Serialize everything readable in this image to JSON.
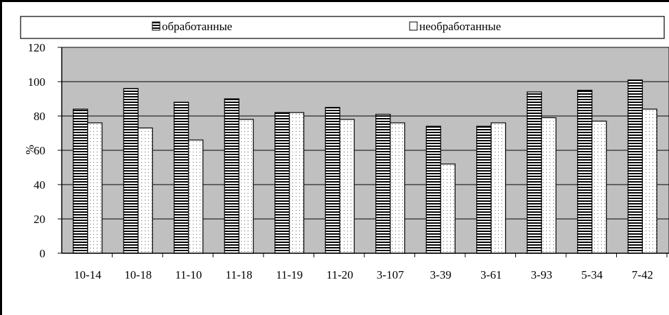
{
  "chart_data": {
    "type": "bar",
    "categories": [
      "10-14",
      "10-18",
      "11-10",
      "11-18",
      "11-19",
      "11-20",
      "3-107",
      "3-39",
      "3-61",
      "3-93",
      "5-34",
      "7-42"
    ],
    "series": [
      {
        "name": "обработанные",
        "values": [
          84,
          96,
          88,
          90,
          82,
          85,
          81,
          74,
          74,
          94,
          95,
          101
        ]
      },
      {
        "name": "необработанные",
        "values": [
          76,
          73,
          66,
          78,
          82,
          78,
          76,
          52,
          76,
          79,
          77,
          84
        ]
      }
    ],
    "ylabel": "%",
    "ylim": [
      0,
      120
    ],
    "yticks": [
      "0",
      "20",
      "40",
      "60",
      "80",
      "100",
      "120"
    ],
    "grid": true,
    "legend": "top",
    "colors": {
      "plot_background": "#c0c0c0",
      "bar_fill": "#ffffff",
      "stroke": "#000000"
    }
  }
}
